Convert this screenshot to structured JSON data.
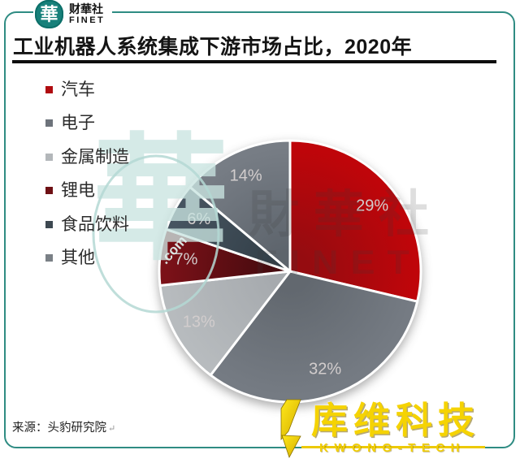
{
  "header": {
    "logo": {
      "seal_glyph": "華",
      "name_cn": "财華社",
      "name_en": "FINET"
    },
    "title": "工业机器人系统集成下游市场占比，2020年"
  },
  "chart_data": {
    "type": "pie",
    "title": "工业机器人系统集成下游市场占比，2020年",
    "unit": "%",
    "start_angle_deg": 0,
    "direction": "clockwise",
    "legend_position": "left",
    "label_color": "#d2cdcd",
    "separator_color": "#ffffff",
    "slices": [
      {
        "label": "汽车",
        "value": 29,
        "label_text": "29%",
        "color": "#b00b10",
        "color_inner": "#950c10",
        "color_outer": "#bf050a"
      },
      {
        "label": "电子",
        "value": 32,
        "label_text": "32%",
        "color": "#6d737b",
        "color_inner": "#62686f",
        "color_outer": "#757b83"
      },
      {
        "label": "金属制造",
        "value": 13,
        "label_text": "13%",
        "color": "#b3b7ba",
        "color_inner": "#a6aaae",
        "color_outer": "#b7bbbe"
      },
      {
        "label": "锂电",
        "value": 7,
        "label_text": "7%",
        "color": "#6e1014",
        "color_inner": "#470b0f",
        "color_outer": "#7b1118"
      },
      {
        "label": "食品饮料",
        "value": 6,
        "label_text": "6%",
        "color": "#3d4851",
        "color_inner": "#333f48",
        "color_outer": "#465460"
      },
      {
        "label": "其他",
        "value": 14,
        "label_text": "14%",
        "color": "#7a8086",
        "color_inner": "#5d646c",
        "color_outer": "#777d85"
      }
    ]
  },
  "watermarks": {
    "seal": {
      "glyph": "華",
      "caption": ".com"
    },
    "center": {
      "line1": "財華社",
      "line2": "FINET"
    }
  },
  "source": {
    "text": "来源：头豹研究院",
    "return_mark": "↵"
  },
  "brand_logo": {
    "text_cn": "库维科技",
    "text_en": "KWONG-TECH"
  },
  "colors": {
    "frame": "#2f8c83",
    "seal_bg": "#17807a",
    "brand_yellow": "#f5d303",
    "title_text": "#141414"
  }
}
